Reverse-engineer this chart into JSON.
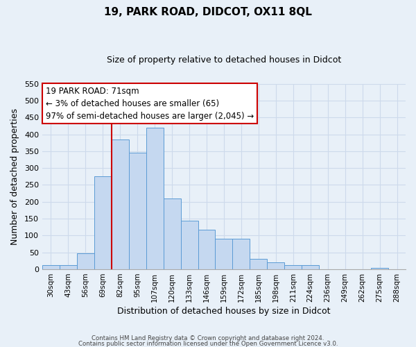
{
  "title": "19, PARK ROAD, DIDCOT, OX11 8QL",
  "subtitle": "Size of property relative to detached houses in Didcot",
  "xlabel": "Distribution of detached houses by size in Didcot",
  "ylabel": "Number of detached properties",
  "categories": [
    "30sqm",
    "43sqm",
    "56sqm",
    "69sqm",
    "82sqm",
    "95sqm",
    "107sqm",
    "120sqm",
    "133sqm",
    "146sqm",
    "159sqm",
    "172sqm",
    "185sqm",
    "198sqm",
    "211sqm",
    "224sqm",
    "236sqm",
    "249sqm",
    "262sqm",
    "275sqm",
    "288sqm"
  ],
  "values": [
    12,
    12,
    48,
    275,
    385,
    345,
    420,
    210,
    145,
    117,
    90,
    90,
    32,
    20,
    12,
    12,
    0,
    0,
    0,
    5,
    0
  ],
  "bar_color": "#c5d8f0",
  "bar_edge_color": "#5b9bd5",
  "vline_x_index": 3,
  "vline_color": "#cc0000",
  "annotation_title": "19 PARK ROAD: 71sqm",
  "annotation_line1": "← 3% of detached houses are smaller (65)",
  "annotation_line2": "97% of semi-detached houses are larger (2,045) →",
  "annotation_box_color": "#ffffff",
  "annotation_box_edge_color": "#cc0000",
  "ylim": [
    0,
    550
  ],
  "yticks": [
    0,
    50,
    100,
    150,
    200,
    250,
    300,
    350,
    400,
    450,
    500,
    550
  ],
  "grid_color": "#cddaeb",
  "background_color": "#e8f0f8",
  "footer_line1": "Contains HM Land Registry data © Crown copyright and database right 2024.",
  "footer_line2": "Contains public sector information licensed under the Open Government Licence v3.0."
}
